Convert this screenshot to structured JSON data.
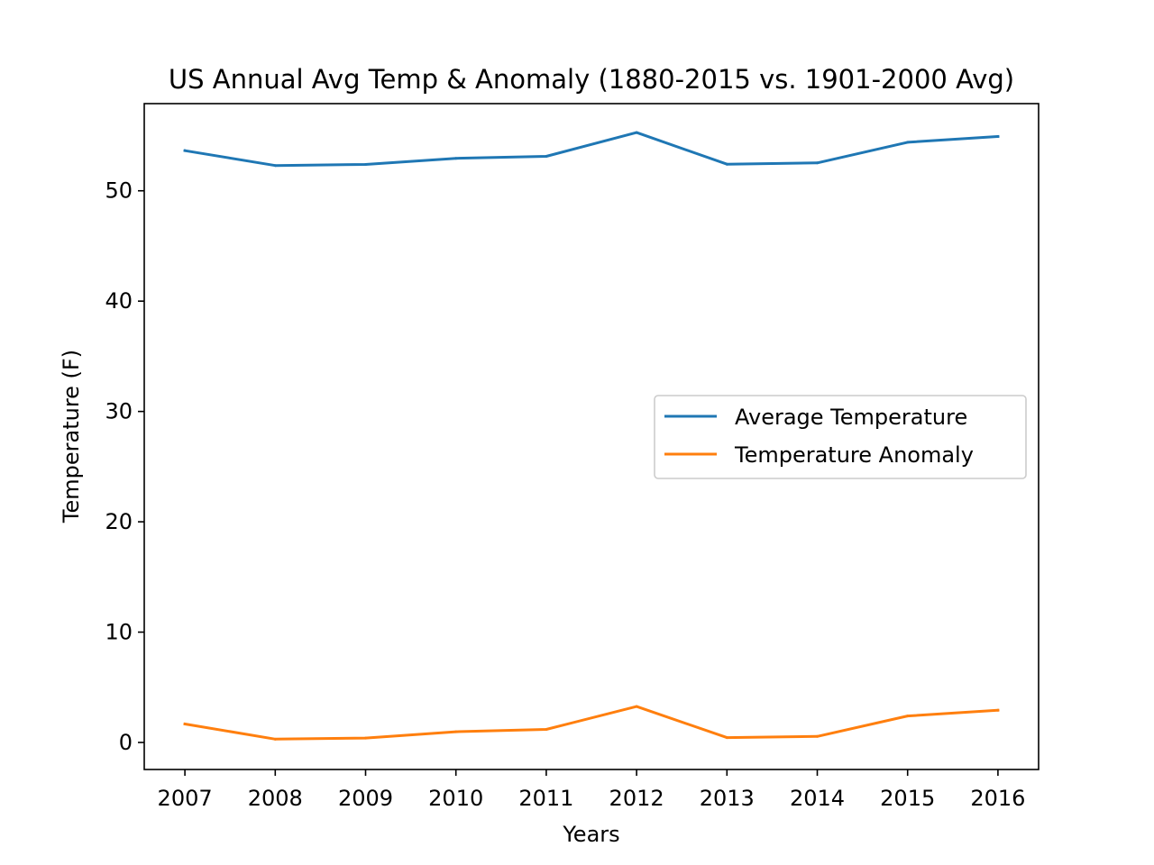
{
  "chart_data": {
    "type": "line",
    "title": "US Annual Avg Temp & Anomaly (1880-2015 vs. 1901-2000 Avg)",
    "xlabel": "Years",
    "ylabel": "Temperature (F)",
    "x": [
      2007,
      2008,
      2009,
      2010,
      2011,
      2012,
      2013,
      2014,
      2015,
      2016
    ],
    "x_tick_labels": [
      "2007",
      "2008",
      "2009",
      "2010",
      "2011",
      "2012",
      "2013",
      "2014",
      "2015",
      "2016"
    ],
    "y_ticks": [
      0,
      10,
      20,
      30,
      40,
      50
    ],
    "y_tick_labels": [
      "0",
      "10",
      "20",
      "30",
      "40",
      "50"
    ],
    "xlim": [
      2006.55,
      2016.45
    ],
    "ylim": [
      -2.45,
      57.9
    ],
    "grid": false,
    "legend_position": "center-right",
    "series": [
      {
        "name": "Average Temperature",
        "color": "#1f77b4",
        "values": [
          53.64,
          52.29,
          52.39,
          52.94,
          53.12,
          55.28,
          52.41,
          52.53,
          54.4,
          54.92
        ]
      },
      {
        "name": "Temperature Anomaly",
        "color": "#ff7f0e",
        "values": [
          1.67,
          0.3,
          0.4,
          0.97,
          1.18,
          3.26,
          0.44,
          0.55,
          2.4,
          2.92
        ]
      }
    ]
  }
}
